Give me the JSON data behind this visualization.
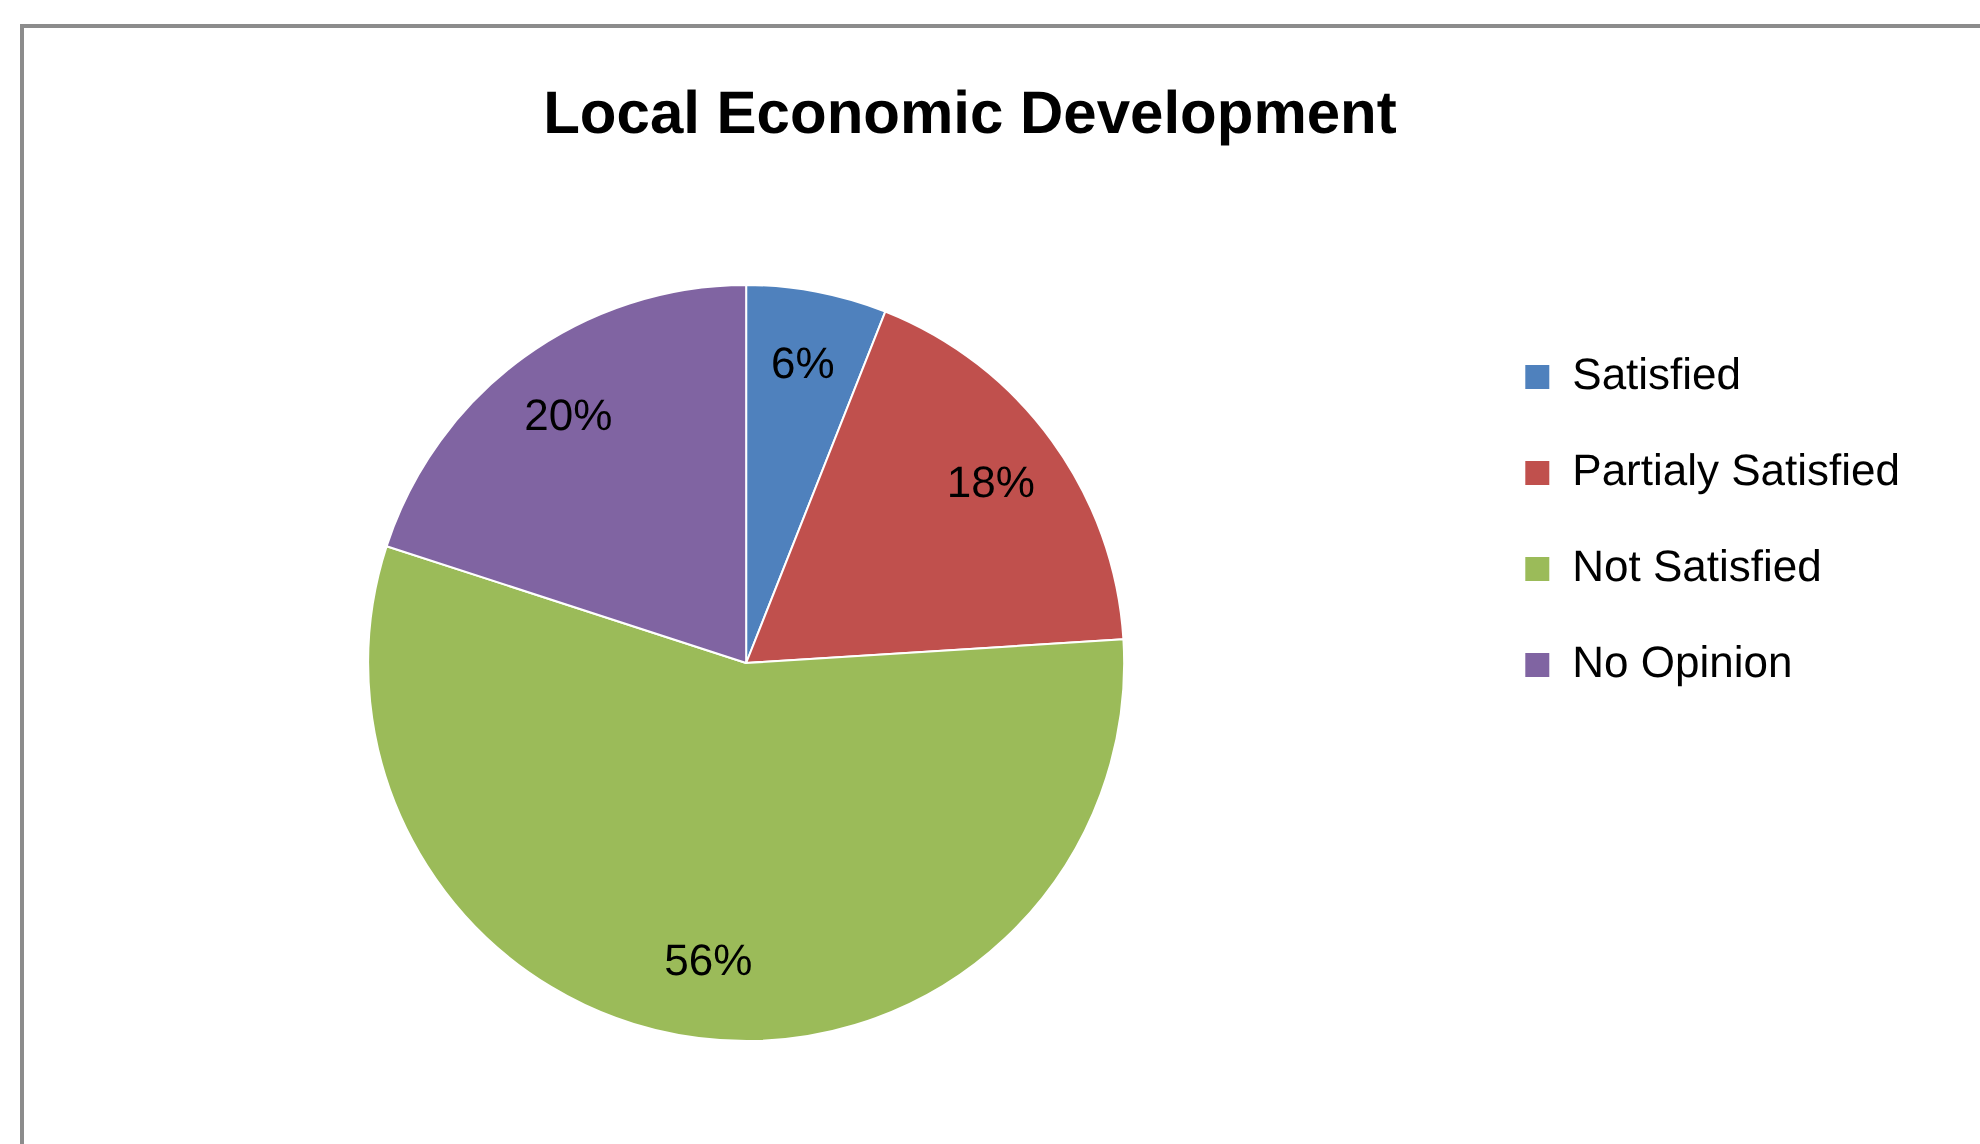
{
  "chart_data": {
    "type": "pie",
    "title": "Local Economic Development",
    "categories": [
      "Satisfied",
      "Partialy Satisfied",
      "Not Satisfied",
      "No Opinion"
    ],
    "values": [
      6,
      18,
      56,
      20
    ],
    "colors": [
      "#4f81bd",
      "#c0504d",
      "#9bbb59",
      "#8064a2"
    ],
    "value_labels": [
      "6%",
      "18%",
      "56%",
      "20%"
    ],
    "legend": "right"
  }
}
